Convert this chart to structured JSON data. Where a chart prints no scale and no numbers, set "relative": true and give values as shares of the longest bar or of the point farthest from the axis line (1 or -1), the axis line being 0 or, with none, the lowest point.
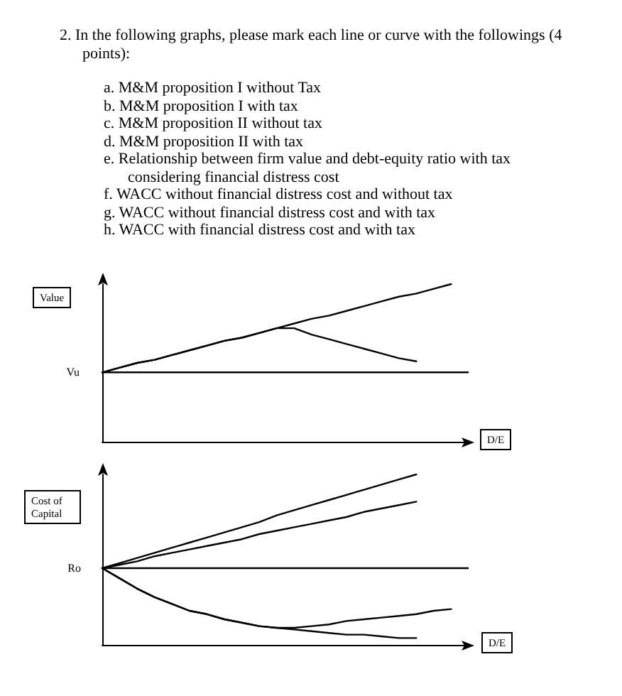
{
  "chart_data": [
    {
      "type": "line",
      "title": "2. In the following graphs, please mark each line or curve with the followings (4 points):",
      "annotations": [
        "a. M&M proposition I without Tax",
        "b. M&M proposition I with tax",
        "c. M&M proposition II without tax",
        "d. M&M proposition II with tax",
        "e. Relationship between firm value and debt-equity ratio with tax considering financial distress cost",
        "f. WACC without financial distress cost and without tax",
        "g. WACC without financial distress cost and with tax",
        "h. WACC with financial distress cost and with tax"
      ],
      "ylabel": "Value",
      "xlabel": "D/E",
      "relative": true,
      "categories": [
        null,
        null,
        null,
        null,
        null,
        null,
        null,
        null,
        null,
        null,
        null,
        null,
        null,
        null,
        null,
        null,
        null,
        null,
        null,
        null,
        null,
        null
      ],
      "ref_lines": [
        {
          "axis": "y",
          "value": 0.44,
          "label": "Vu",
          "color": "#000000"
        }
      ],
      "series": [
        {
          "color": "#000000",
          "values": [
            0.44,
            0.47,
            0.5,
            0.52,
            0.55,
            0.58,
            0.61,
            0.64,
            0.66,
            0.69,
            0.72,
            0.75,
            0.78,
            0.8,
            0.83,
            0.86,
            0.89,
            0.92,
            0.94,
            0.97,
            1.0,
            null
          ]
        },
        {
          "color": "#000000",
          "values": [
            0.44,
            0.47,
            0.5,
            0.52,
            0.55,
            0.58,
            0.61,
            0.64,
            0.66,
            0.69,
            0.72,
            0.72,
            0.68,
            0.65,
            0.62,
            0.59,
            0.56,
            0.53,
            0.51,
            null,
            null,
            null
          ]
        }
      ]
    },
    {
      "type": "line",
      "ylabel": "Cost of Capital",
      "xlabel": "D/E",
      "relative": true,
      "categories": [
        null,
        null,
        null,
        null,
        null,
        null,
        null,
        null,
        null,
        null,
        null,
        null,
        null,
        null,
        null,
        null,
        null,
        null,
        null,
        null,
        null,
        null
      ],
      "ref_lines": [
        {
          "axis": "y",
          "value": 0.45,
          "label": "Ro",
          "color": "#000000"
        }
      ],
      "series": [
        {
          "color": "#000000",
          "values": [
            0.45,
            0.48,
            0.51,
            0.54,
            0.57,
            0.6,
            0.63,
            0.66,
            0.69,
            0.72,
            0.76,
            0.79,
            0.82,
            0.85,
            0.88,
            0.91,
            0.94,
            0.97,
            1.0,
            null,
            null,
            null
          ]
        },
        {
          "color": "#000000",
          "values": [
            0.45,
            0.47,
            0.49,
            0.52,
            0.54,
            0.56,
            0.58,
            0.6,
            0.62,
            0.65,
            0.67,
            0.69,
            0.71,
            0.73,
            0.75,
            0.78,
            0.8,
            0.82,
            0.84,
            null,
            null,
            null
          ]
        },
        {
          "color": "#000000",
          "values": [
            0.45,
            0.39,
            0.33,
            0.28,
            0.24,
            0.2,
            0.18,
            0.15,
            0.13,
            0.11,
            0.1,
            0.09,
            0.08,
            0.07,
            0.06,
            0.06,
            0.05,
            0.04,
            0.04,
            null,
            null,
            null
          ]
        },
        {
          "color": "#000000",
          "values": [
            0.45,
            0.39,
            0.33,
            0.28,
            0.24,
            0.2,
            0.18,
            0.15,
            0.13,
            0.11,
            0.1,
            0.1,
            0.11,
            0.12,
            0.14,
            0.15,
            0.16,
            0.17,
            0.18,
            0.2,
            0.21,
            null
          ]
        }
      ]
    }
  ]
}
